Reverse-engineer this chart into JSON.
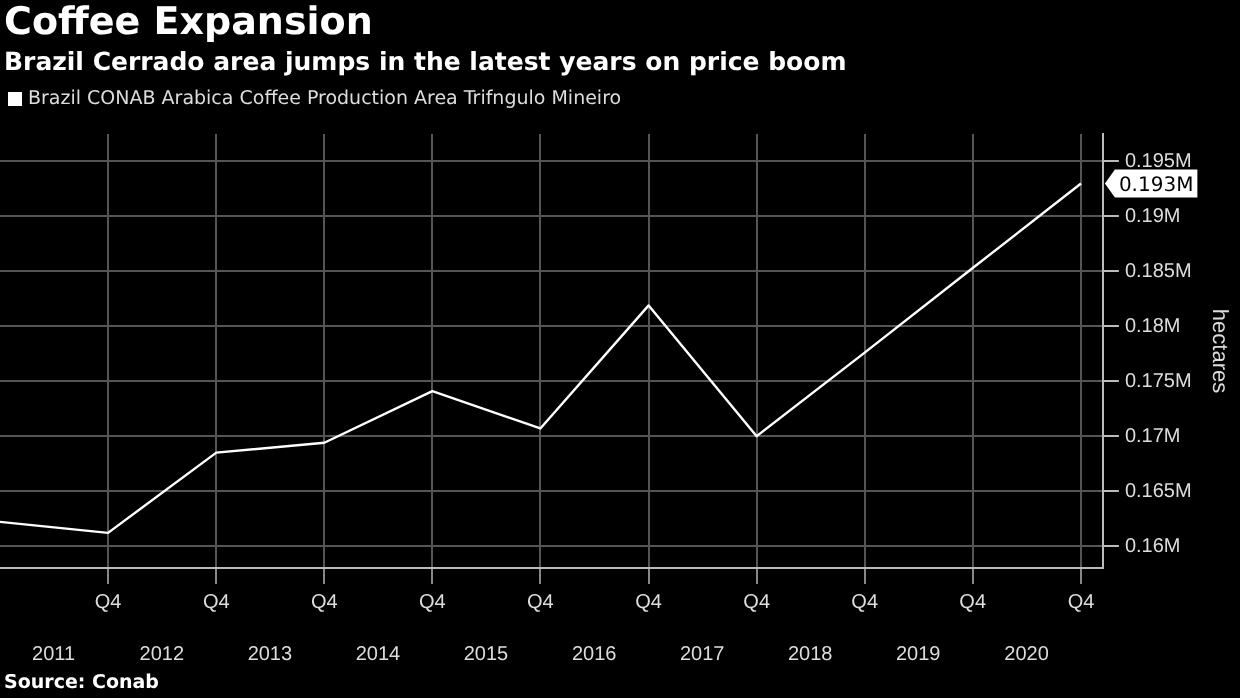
{
  "chart_data": {
    "type": "line",
    "title": "Coffee Expansion",
    "subtitle": "Brazil Cerrado area jumps in the latest years on price boom",
    "ylabel": "hectares",
    "x": [
      "2010-12-31",
      "2011-12-31",
      "2012-12-31",
      "2013-12-31",
      "2014-12-31",
      "2015-12-31",
      "2016-12-31",
      "2017-12-31",
      "2018-12-31",
      "2019-12-31",
      "2020-12-31"
    ],
    "series": [
      {
        "name": "Brazil CONAB Arabica Coffee Production Area Trifngulo Mineiro",
        "color": "#ffffff",
        "values": [
          0.1622,
          0.1612,
          0.1685,
          0.1694,
          0.1741,
          0.1707,
          0.1819,
          0.17,
          0.1776,
          0.1853,
          0.193
        ],
        "value_labels": [
          null,
          null,
          null,
          null,
          null,
          null,
          null,
          null,
          null,
          null,
          "0.193M"
        ]
      }
    ],
    "xlim": [
      "2010-12-31",
      "2021-03-15"
    ],
    "xticks": [
      {
        "value": "2011-12-31",
        "label": "Q4"
      },
      {
        "value": "2012-12-31",
        "label": "Q4"
      },
      {
        "value": "2013-12-31",
        "label": "Q4"
      },
      {
        "value": "2014-12-31",
        "label": "Q4"
      },
      {
        "value": "2015-12-31",
        "label": "Q4"
      },
      {
        "value": "2016-12-31",
        "label": "Q4"
      },
      {
        "value": "2017-12-31",
        "label": "Q4"
      },
      {
        "value": "2018-12-31",
        "label": "Q4"
      },
      {
        "value": "2019-12-31",
        "label": "Q4"
      },
      {
        "value": "2020-12-31",
        "label": "Q4"
      }
    ],
    "x2lim": [
      "2010-12-31",
      "2021-03-15"
    ],
    "x2ticks": [
      {
        "value": "2011-06-30",
        "label": "2011"
      },
      {
        "value": "2012-06-30",
        "label": "2012"
      },
      {
        "value": "2013-06-30",
        "label": "2013"
      },
      {
        "value": "2014-06-30",
        "label": "2014"
      },
      {
        "value": "2015-06-30",
        "label": "2015"
      },
      {
        "value": "2016-06-30",
        "label": "2016"
      },
      {
        "value": "2017-06-30",
        "label": "2017"
      },
      {
        "value": "2018-06-30",
        "label": "2018"
      },
      {
        "value": "2019-06-30",
        "label": "2019"
      },
      {
        "value": "2020-06-30",
        "label": "2020"
      }
    ],
    "ylim": [
      0.158,
      0.1975
    ],
    "yticks": [
      {
        "value": 0.16,
        "label": "0.16M"
      },
      {
        "value": 0.165,
        "label": "0.165M"
      },
      {
        "value": 0.17,
        "label": "0.17M"
      },
      {
        "value": 0.175,
        "label": "0.175M"
      },
      {
        "value": 0.18,
        "label": "0.18M"
      },
      {
        "value": 0.185,
        "label": "0.185M"
      },
      {
        "value": 0.19,
        "label": "0.19M"
      },
      {
        "value": 0.195,
        "label": "0.195M"
      }
    ],
    "grid": true,
    "legend": "top left",
    "marker": "none",
    "line_style": "solid",
    "annotations": [
      "Source: Conab"
    ]
  }
}
